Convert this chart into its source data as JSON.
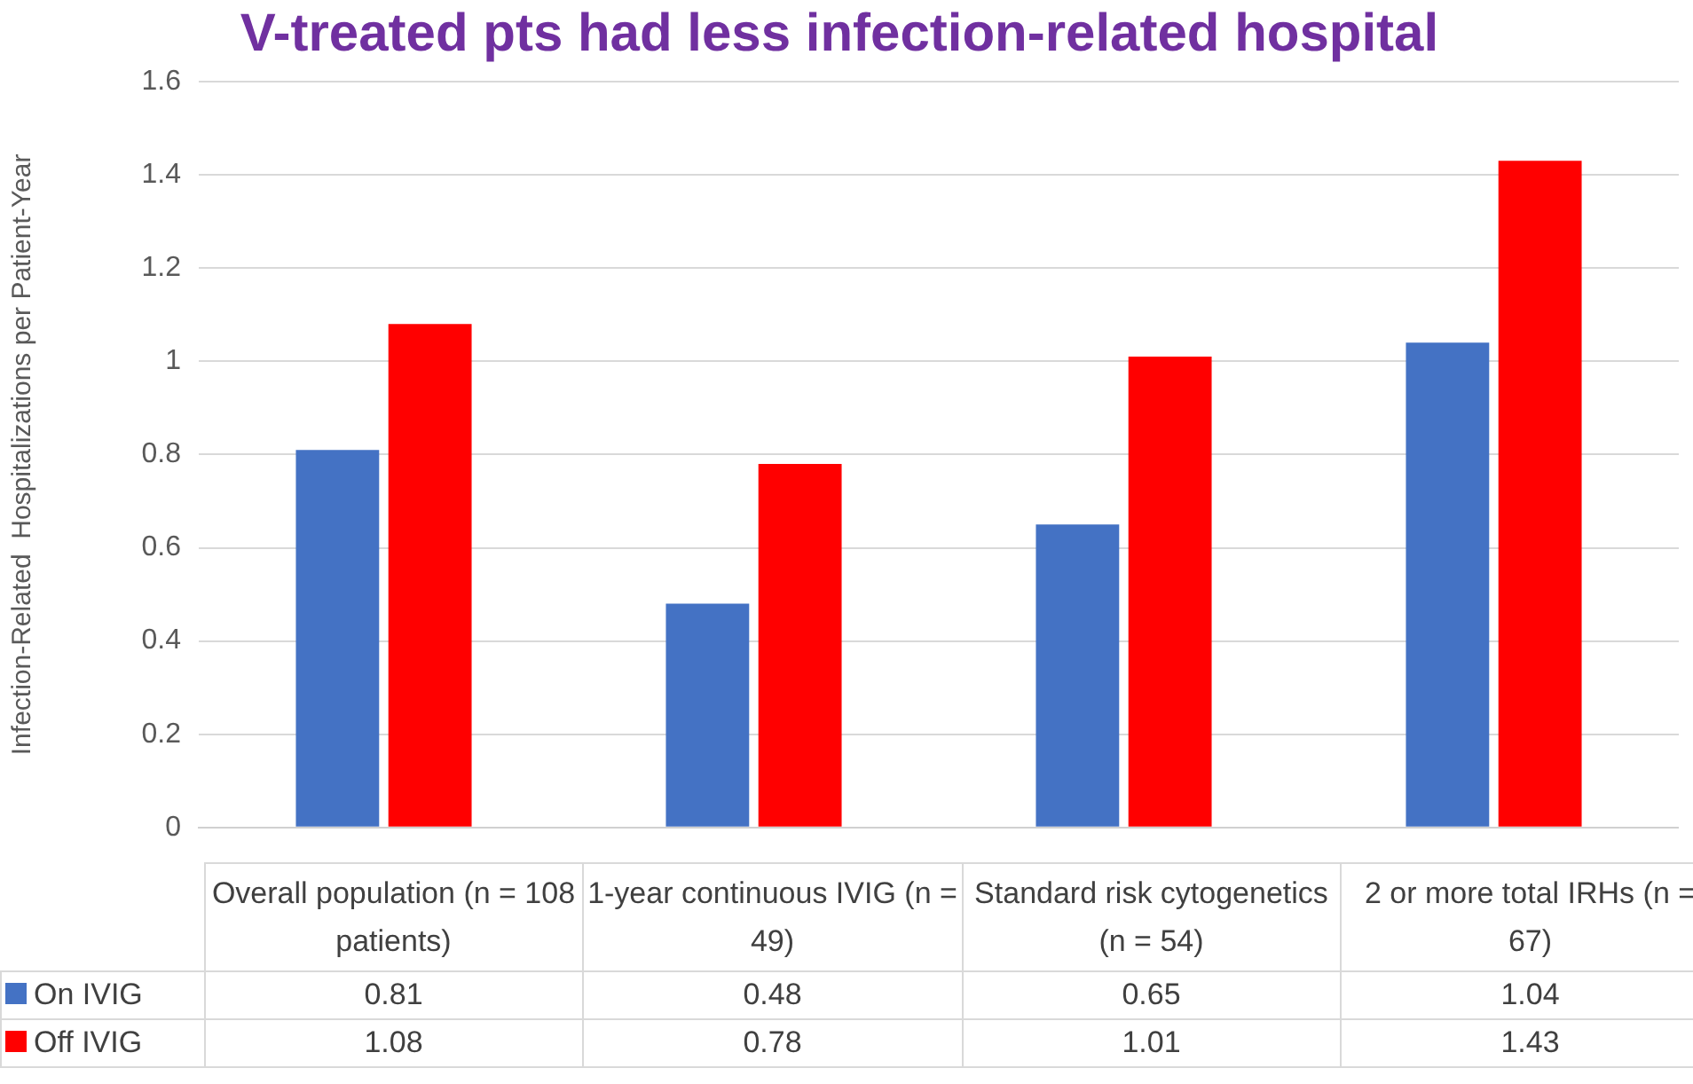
{
  "chart_data": {
    "type": "bar",
    "title": "V-treated pts had less infection-related hospital",
    "ylabel": "Infection-Related  Hospitalizations per Patient-Year",
    "categories": [
      "Overall population (n = 108 patients)",
      "1-year continuous IVIG (n = 49)",
      "Standard risk cytogenetics (n = 54)",
      "2 or more total IRHs (n = 67)"
    ],
    "series": [
      {
        "name": "On IVIG",
        "color": "#4472c4",
        "values": [
          0.81,
          0.48,
          0.65,
          1.04
        ]
      },
      {
        "name": "Off IVIG",
        "color": "#ff0000",
        "values": [
          1.08,
          0.78,
          1.01,
          1.43
        ]
      }
    ],
    "ylim": [
      0,
      1.6
    ],
    "yticks": [
      0,
      0.2,
      0.4,
      0.6,
      0.8,
      1,
      1.2,
      1.4,
      1.6
    ],
    "grid": "y",
    "legend": "bottom",
    "data_labels": true
  }
}
